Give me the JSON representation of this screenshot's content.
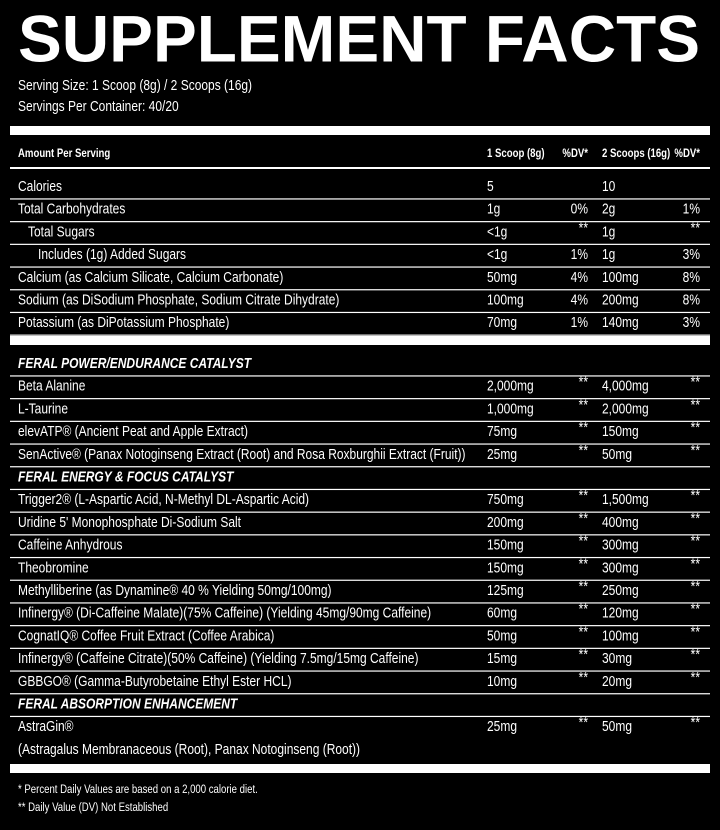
{
  "header": {
    "title": "SUPPLEMENT FACTS",
    "serving_size": "Serving Size: 1 Scoop (8g) / 2 Scoops (16g)",
    "servings_per_container": "Servings Per Container: 40/20"
  },
  "table": {
    "columns": [
      "Amount Per Serving",
      "1 Scoop (8g)",
      "%DV*",
      "2 Scoops (16g)",
      "%DV*"
    ],
    "nutrients": [
      {
        "name": "Calories",
        "s1": "5",
        "s2": "10"
      },
      {
        "name": "Total Carbohydrates",
        "s1": "1g",
        "dv1": "0%",
        "s2": "2g",
        "dv2": "1%",
        "subrows": [
          {
            "name": "Total Sugars",
            "s1": "<1g",
            "dv1": "**",
            "s2": "1g",
            "dv2": "**",
            "subrows": [
              {
                "name": "Includes (1g) Added Sugars",
                "s1": "<1g",
                "dv1": "1%",
                "s2": "1g",
                "dv2": "3%"
              }
            ]
          }
        ]
      },
      {
        "name": "Calcium (as Calcium Silicate, Calcium Carbonate)",
        "s1": "50mg",
        "dv1": "4%",
        "s2": "100mg",
        "dv2": "8%"
      },
      {
        "name": "Sodium (as DiSodium Phosphate, Sodium Citrate Dihydrate)",
        "s1": "100mg",
        "dv1": "4%",
        "s2": "200mg",
        "dv2": "8%"
      },
      {
        "name": "Potassium (as DiPotassium Phosphate)",
        "s1": "70mg",
        "dv1": "1%",
        "s2": "140mg",
        "dv2": "3%"
      }
    ],
    "sections": [
      {
        "title": "FERAL POWER/ENDURANCE CATALYST",
        "rows": [
          {
            "name": "Beta Alanine",
            "s1": "2,000mg",
            "dv1": "**",
            "s2": "4,000mg",
            "dv2": "**"
          },
          {
            "name": "L-Taurine",
            "s1": "1,000mg",
            "dv1": "**",
            "s2": "2,000mg",
            "dv2": "**"
          },
          {
            "name": "elevATP® (Ancient Peat and Apple Extract)",
            "s1": "75mg",
            "dv1": "**",
            "s2": "150mg",
            "dv2": "**"
          },
          {
            "name": "SenActive® (Panax Notoginseng Extract (Root) and Rosa Roxburghii Extract (Fruit))",
            "s1": "25mg",
            "dv1": "**",
            "s2": "50mg",
            "dv2": "**"
          }
        ]
      },
      {
        "title": "FERAL ENERGY & FOCUS CATALYST",
        "rows": [
          {
            "name": "Trigger2® (L-Aspartic Acid, N-Methyl DL-Aspartic Acid)",
            "s1": "750mg",
            "dv1": "**",
            "s2": "1,500mg",
            "dv2": "**"
          },
          {
            "name": "Uridine 5' Monophosphate Di-Sodium Salt",
            "s1": "200mg",
            "dv1": "**",
            "s2": "400mg",
            "dv2": "**"
          },
          {
            "name": "Caffeine Anhydrous",
            "s1": "150mg",
            "dv1": "**",
            "s2": "300mg",
            "dv2": "**"
          },
          {
            "name": "Theobromine",
            "s1": "150mg",
            "dv1": "**",
            "s2": "300mg",
            "dv2": "**"
          },
          {
            "name": "Methylliberine (as Dynamine® 40 % Yielding 50mg/100mg)",
            "s1": "125mg",
            "dv1": "**",
            "s2": "250mg",
            "dv2": "**"
          },
          {
            "name": "Infinergy® (Di-Caffeine Malate)(75% Caffeine) (Yielding 45mg/90mg Caffeine)",
            "s1": "60mg",
            "dv1": "**",
            "s2": "120mg",
            "dv2": "**"
          },
          {
            "name": "CognatIQ® Coffee Fruit Extract (Coffee Arabica)",
            "s1": "50mg",
            "dv1": "**",
            "s2": "100mg",
            "dv2": "**"
          },
          {
            "name": "Infinergy® (Caffeine Citrate)(50% Caffeine) (Yielding 7.5mg/15mg Caffeine)",
            "s1": "15mg",
            "dv1": "**",
            "s2": "30mg",
            "dv2": "**"
          },
          {
            "name": "GBBGO® (Gamma-Butyrobetaine Ethyl Ester HCL)",
            "s1": "10mg",
            "dv1": "**",
            "s2": "20mg",
            "dv2": "**"
          }
        ]
      },
      {
        "title": "FERAL ABSORPTION ENHANCEMENT",
        "rows": [
          {
            "name": "AstraGin®",
            "detail": "(Astragalus Membranaceous (Root), Panax Notoginseng (Root))",
            "s1": "25mg",
            "dv1": "**",
            "s2": "50mg",
            "dv2": "**"
          }
        ]
      }
    ]
  },
  "footnotes": [
    "* Percent Daily Values are based on a 2,000 calorie diet.",
    "** Daily Value (DV) Not Established"
  ]
}
